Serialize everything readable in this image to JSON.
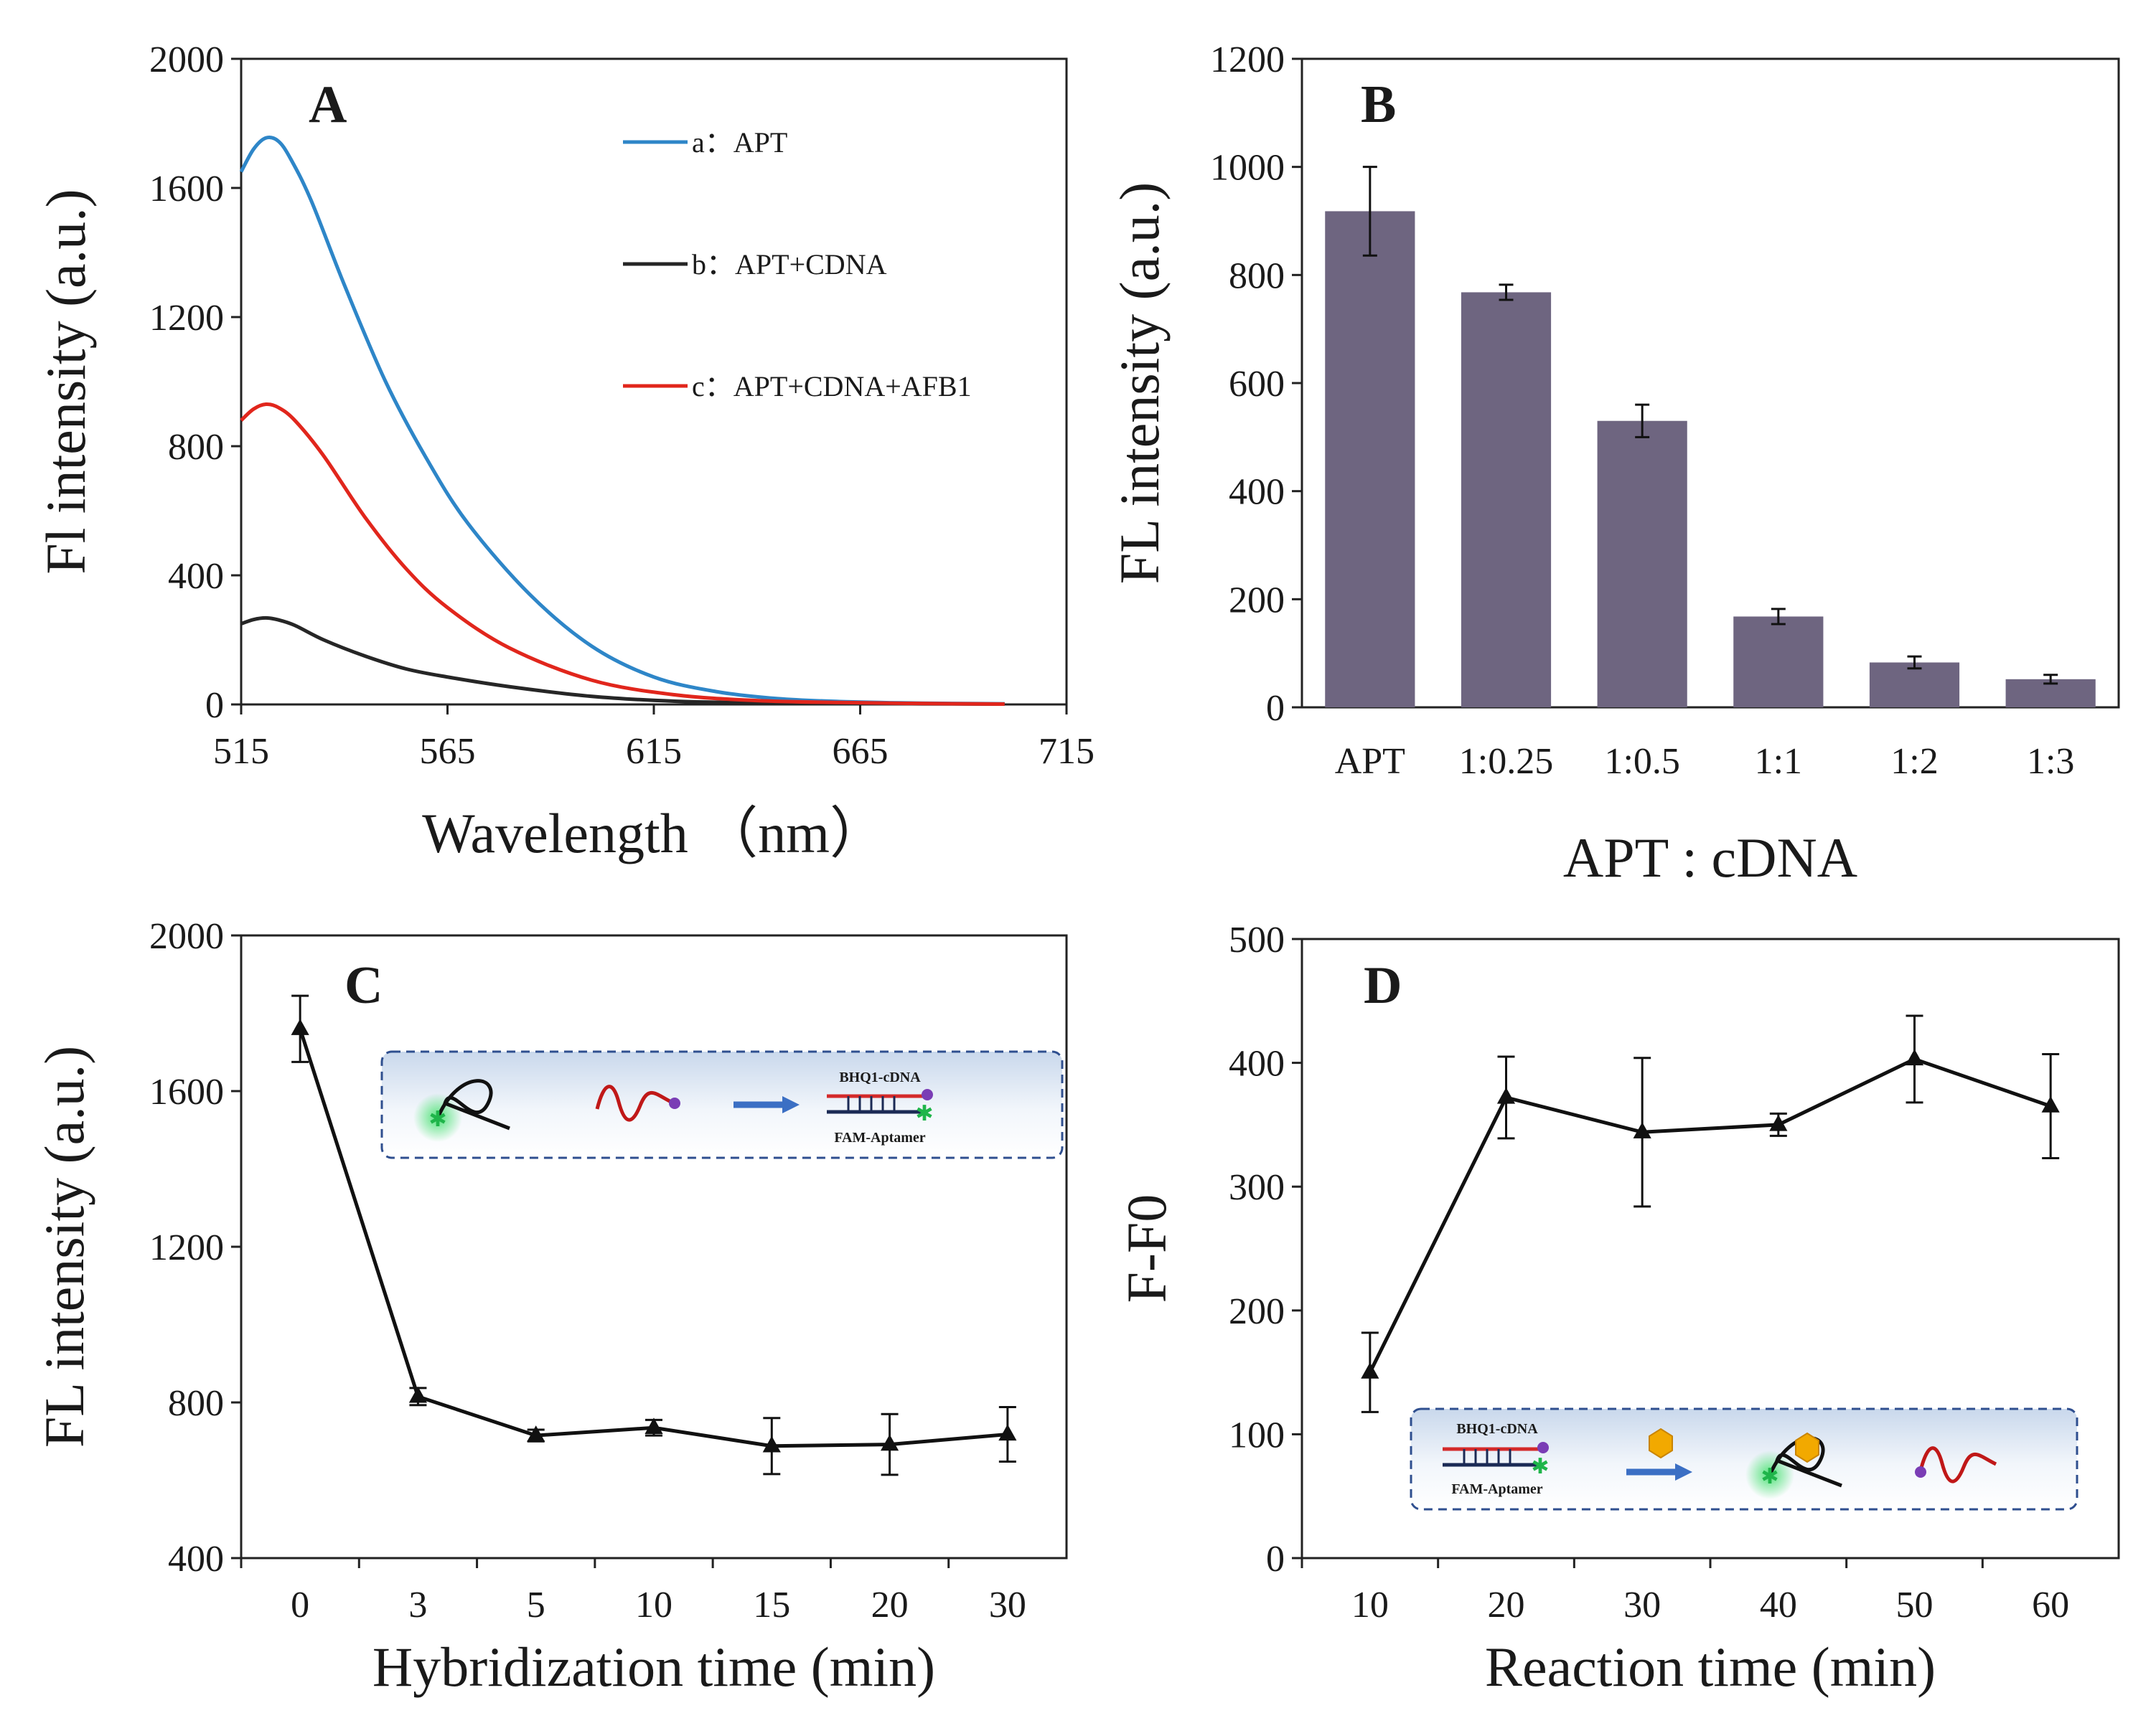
{
  "chart_data": [
    {
      "id": "A",
      "type": "line",
      "panel_label": "A",
      "xlabel": "Wavelength （nm）",
      "ylabel": "Fl intensity (a.u.)",
      "xlim": [
        515,
        715
      ],
      "ylim": [
        0,
        2000
      ],
      "x_ticks": [
        515,
        565,
        615,
        665,
        715
      ],
      "y_ticks": [
        0,
        400,
        800,
        1200,
        1600,
        2000
      ],
      "legend_position": "top-right",
      "series": [
        {
          "name": "a：APT",
          "color": "#2e86c8",
          "x": [
            515,
            518,
            521,
            524,
            527,
            532,
            540,
            550,
            560,
            570,
            585,
            600,
            615,
            630,
            645,
            660,
            680,
            700
          ],
          "y": [
            1650,
            1720,
            1755,
            1745,
            1690,
            1560,
            1300,
            1000,
            760,
            560,
            340,
            180,
            85,
            40,
            18,
            9,
            4,
            2
          ]
        },
        {
          "name": "b：APT+CDNA",
          "color": "#262626",
          "x": [
            515,
            518,
            521,
            524,
            528,
            535,
            545,
            555,
            565,
            580,
            600,
            620,
            640,
            660,
            680,
            700
          ],
          "y": [
            250,
            263,
            268,
            262,
            245,
            200,
            150,
            110,
            85,
            55,
            25,
            10,
            5,
            3,
            2,
            1
          ]
        },
        {
          "name": "c：APT+CDNA+AFB1",
          "color": "#e1261c",
          "x": [
            515,
            518,
            521,
            524,
            528,
            535,
            545,
            555,
            565,
            580,
            600,
            620,
            640,
            660,
            680,
            700
          ],
          "y": [
            880,
            915,
            930,
            920,
            880,
            770,
            580,
            420,
            300,
            175,
            75,
            30,
            12,
            6,
            3,
            1
          ]
        }
      ]
    },
    {
      "id": "B",
      "type": "bar",
      "panel_label": "B",
      "xlabel": "APT : cDNA",
      "ylabel": "FL intensity (a.u.)",
      "ylim": [
        0,
        1200
      ],
      "y_ticks": [
        0,
        200,
        400,
        600,
        800,
        1000,
        1200
      ],
      "bar_color": "#6e6580",
      "categories": [
        "APT",
        "1:0.25",
        "1:0.5",
        "1:1",
        "1:2",
        "1:3"
      ],
      "values": [
        918,
        768,
        530,
        168,
        83,
        52
      ],
      "errors": [
        82,
        14,
        30,
        14,
        11,
        8
      ]
    },
    {
      "id": "C",
      "type": "line",
      "panel_label": "C",
      "xlabel": "Hybridization time (min)",
      "ylabel": "FL intensity (a.u.)",
      "ylim": [
        400,
        2000
      ],
      "y_ticks": [
        400,
        800,
        1200,
        1600,
        2000
      ],
      "categories": [
        "0",
        "3",
        "5",
        "10",
        "15",
        "20",
        "30"
      ],
      "values": [
        1760,
        815,
        715,
        735,
        688,
        692,
        718
      ],
      "errors": [
        85,
        22,
        15,
        20,
        72,
        78,
        70
      ],
      "marker": "triangle",
      "color": "#111111",
      "inset": {
        "top_label": "BHQ1-cDNA",
        "bottom_label": "FAM-Aptamer",
        "position": "top-right"
      }
    },
    {
      "id": "D",
      "type": "line",
      "panel_label": "D",
      "xlabel": "Reaction time (min)",
      "ylabel": "F-F0",
      "ylim": [
        0,
        500
      ],
      "y_ticks": [
        0,
        100,
        200,
        300,
        400,
        500
      ],
      "categories": [
        "10",
        "20",
        "30",
        "40",
        "50",
        "60"
      ],
      "values": [
        150,
        372,
        344,
        350,
        403,
        365
      ],
      "errors": [
        32,
        33,
        60,
        9,
        35,
        42
      ],
      "marker": "triangle",
      "color": "#111111",
      "inset": {
        "top_label": "BHQ1-cDNA",
        "bottom_label": "FAM-Aptamer",
        "position": "bottom-right"
      }
    }
  ]
}
